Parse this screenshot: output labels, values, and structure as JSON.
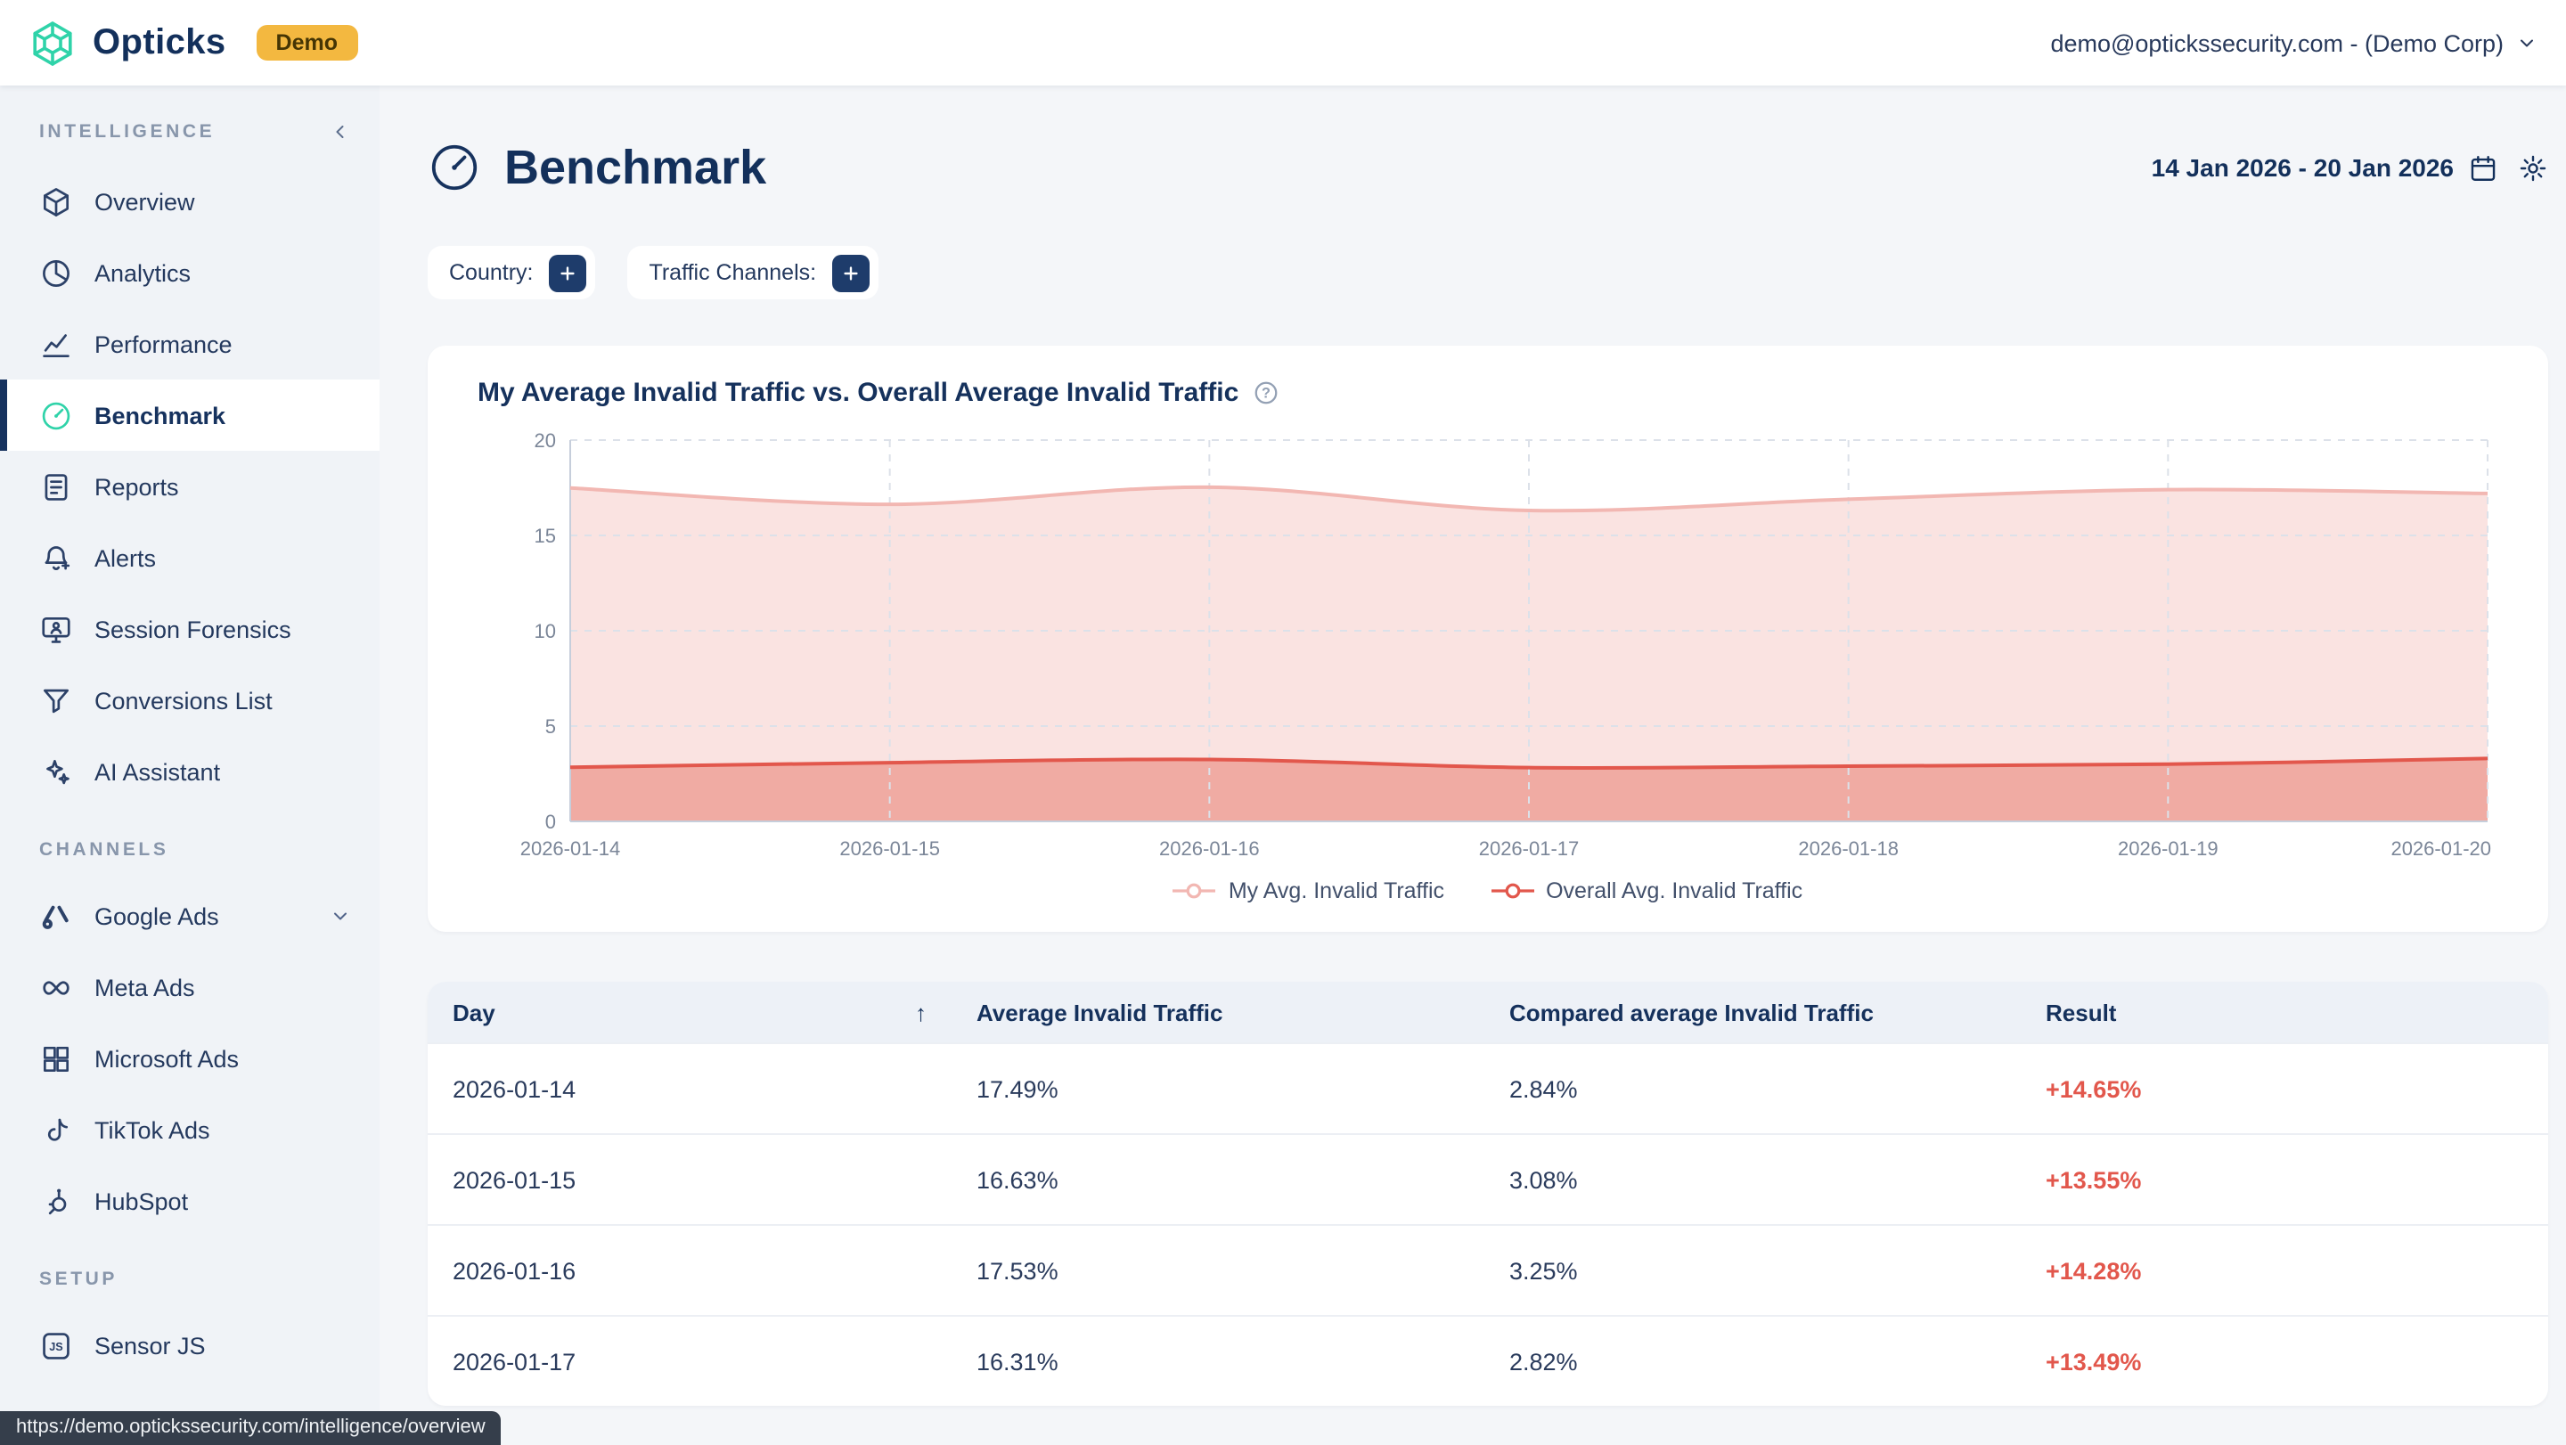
{
  "topbar": {
    "brand": "Opticks",
    "badge": "Demo",
    "account": "demo@optickssecurity.com - (Demo Corp)"
  },
  "sidebar": {
    "sections": [
      {
        "label": "INTELLIGENCE",
        "items": [
          {
            "label": "Overview"
          },
          {
            "label": "Analytics"
          },
          {
            "label": "Performance"
          },
          {
            "label": "Benchmark",
            "active": true
          },
          {
            "label": "Reports"
          },
          {
            "label": "Alerts"
          },
          {
            "label": "Session Forensics"
          },
          {
            "label": "Conversions List"
          },
          {
            "label": "AI Assistant"
          }
        ]
      },
      {
        "label": "CHANNELS",
        "items": [
          {
            "label": "Google Ads",
            "expandable": true
          },
          {
            "label": "Meta Ads"
          },
          {
            "label": "Microsoft Ads"
          },
          {
            "label": "TikTok Ads"
          },
          {
            "label": "HubSpot"
          }
        ]
      },
      {
        "label": "SETUP",
        "items": [
          {
            "label": "Sensor JS"
          }
        ]
      }
    ]
  },
  "page": {
    "title": "Benchmark",
    "date_range": "14 Jan 2026 - 20 Jan 2026",
    "filters": {
      "country_label": "Country:",
      "channels_label": "Traffic Channels:"
    }
  },
  "chart_data": {
    "type": "area",
    "title": "My Average Invalid Traffic vs. Overall Average Invalid Traffic",
    "x": [
      "2026-01-14",
      "2026-01-15",
      "2026-01-16",
      "2026-01-17",
      "2026-01-18",
      "2026-01-19",
      "2026-01-20"
    ],
    "series": [
      {
        "name": "My Avg. Invalid Traffic",
        "values": [
          17.49,
          16.63,
          17.53,
          16.31,
          16.9,
          17.4,
          17.2
        ],
        "color": "#f2b7b2",
        "fill": "#fae3e1"
      },
      {
        "name": "Overall Avg. Invalid Traffic",
        "values": [
          2.84,
          3.08,
          3.25,
          2.82,
          2.9,
          3.0,
          3.3
        ],
        "color": "#e2574c",
        "fill": "#f0aba3"
      }
    ],
    "ylim": [
      0,
      20
    ],
    "yticks": [
      0,
      5,
      10,
      15,
      20
    ],
    "grid": true,
    "legend_position": "bottom"
  },
  "table": {
    "columns": [
      "Day",
      "Average Invalid Traffic",
      "Compared average Invalid Traffic",
      "Result"
    ],
    "sort_indicator": "↑",
    "rows": [
      {
        "day": "2026-01-14",
        "avg": "17.49%",
        "compared": "2.84%",
        "result": "+14.65%"
      },
      {
        "day": "2026-01-15",
        "avg": "16.63%",
        "compared": "3.08%",
        "result": "+13.55%"
      },
      {
        "day": "2026-01-16",
        "avg": "17.53%",
        "compared": "3.25%",
        "result": "+14.28%"
      },
      {
        "day": "2026-01-17",
        "avg": "16.31%",
        "compared": "2.82%",
        "result": "+13.49%"
      }
    ]
  },
  "status_url": "https://demo.optickssecurity.com/intelligence/overview",
  "colors": {
    "brand_green": "#2fd3a9",
    "navy": "#16325e",
    "badge_yellow": "#f3b840",
    "result_red": "#e2574c",
    "my_series_fill": "#fae3e1",
    "overall_series_fill": "#f0aba3"
  }
}
